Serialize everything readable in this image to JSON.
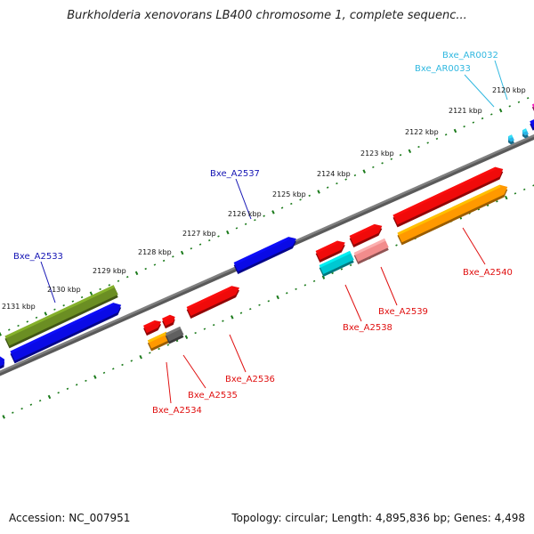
{
  "title": "Burkholderia xenovorans LB400 chromosome 1, complete sequenc...",
  "footer": {
    "accession": "Accession: NC_007951",
    "summary": "Topology: circular; Length: 4,895,836 bp; Genes: 4,498"
  },
  "colors": {
    "backbone": "#808080",
    "tick": "#1a7a1a",
    "label_blue": "#1414b4",
    "label_red": "#e01010",
    "label_cyan": "#30b8e0"
  },
  "kbp_ticks": [
    "2120 kbp",
    "2121 kbp",
    "2122 kbp",
    "2123 kbp",
    "2124 kbp",
    "2125 kbp",
    "2126 kbp",
    "2127 kbp",
    "2128 kbp",
    "2129 kbp",
    "2130 kbp",
    "2131 kbp"
  ],
  "gene_labels": [
    {
      "text": "Bxe_AR0032",
      "color": "cyan"
    },
    {
      "text": "Bxe_AR0033",
      "color": "cyan"
    },
    {
      "text": "Bxe_A2537",
      "color": "blue"
    },
    {
      "text": "Bxe_A2533",
      "color": "blue"
    },
    {
      "text": "Bxe_A2540",
      "color": "red"
    },
    {
      "text": "Bxe_A2539",
      "color": "red"
    },
    {
      "text": "Bxe_A2538",
      "color": "red"
    },
    {
      "text": "Bxe_A2536",
      "color": "red"
    },
    {
      "text": "Bxe_A2535",
      "color": "red"
    },
    {
      "text": "Bxe_A2534",
      "color": "red"
    }
  ],
  "gene_colors": {
    "blue": "#0a0ae6",
    "olive": "#6b8e23",
    "red": "#f00a0a",
    "orange": "#ff9900",
    "cyan": "#00c8d2",
    "pink": "#f28c8c",
    "gray": "#606060",
    "magenta": "#e0189a",
    "lightblue": "#2ab4e6"
  }
}
